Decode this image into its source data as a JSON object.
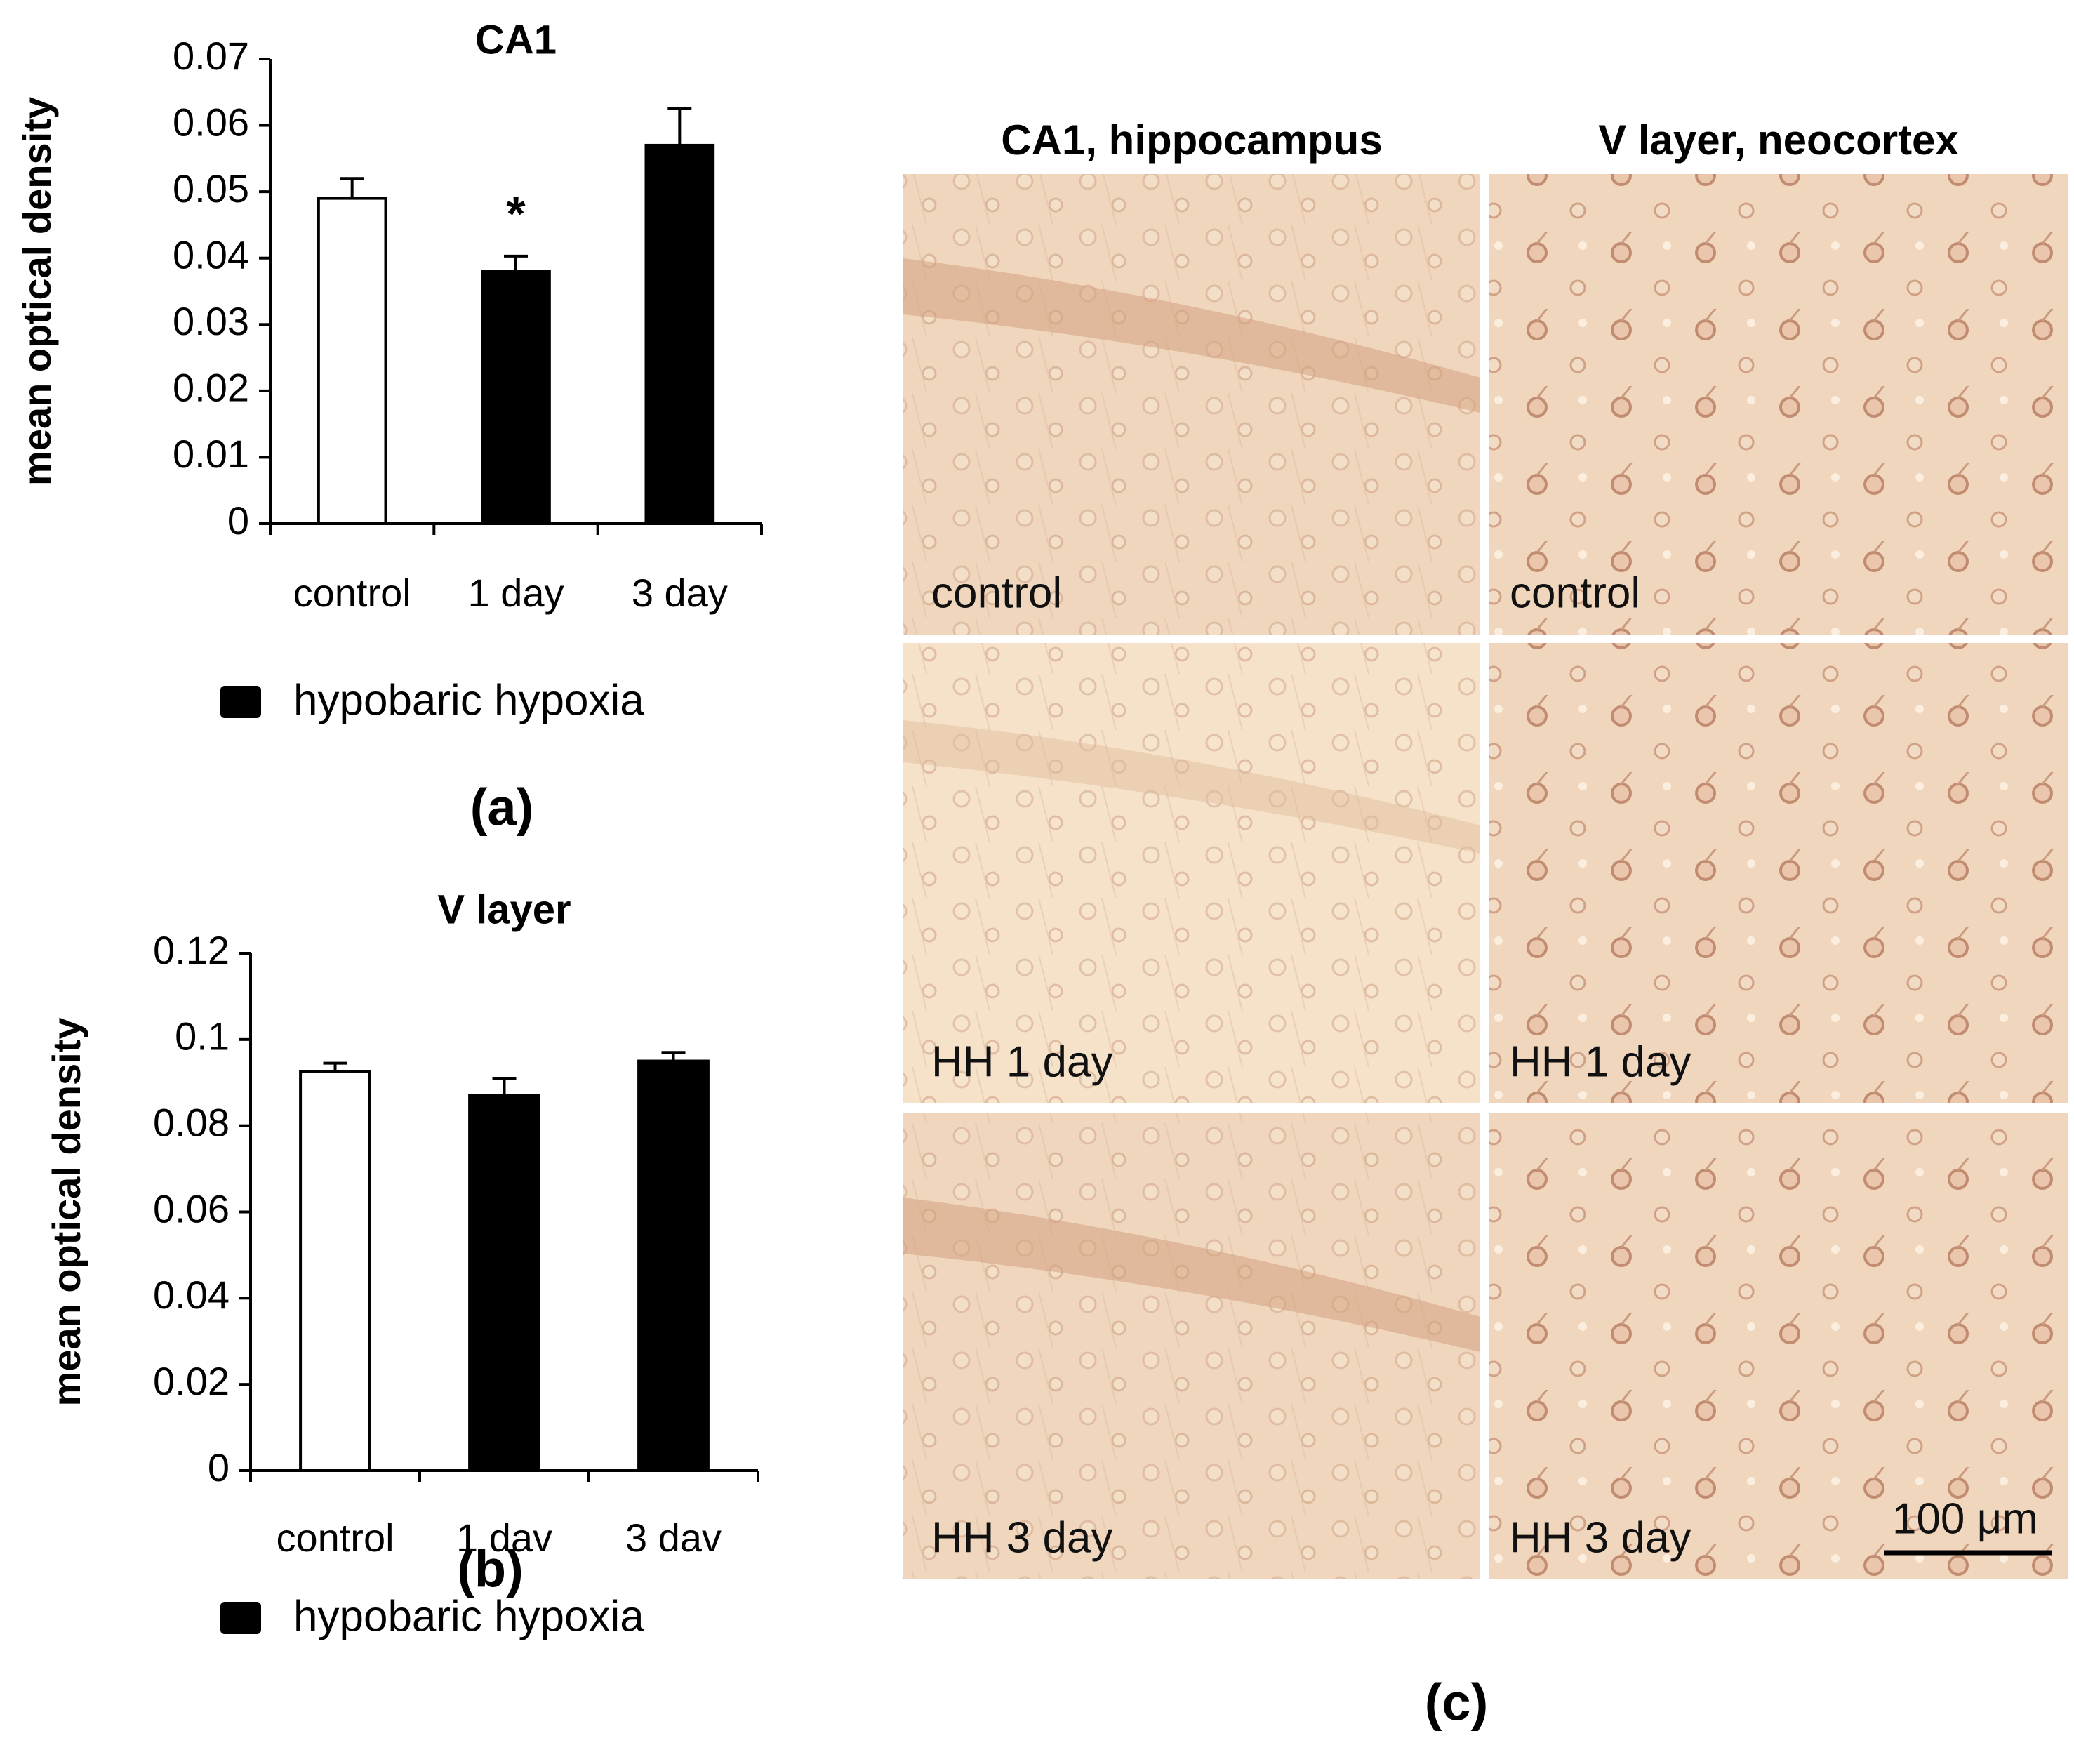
{
  "chart_data": [
    {
      "type": "bar",
      "title": "CA1",
      "y_label": "mean optical density",
      "panel_label": "(a)",
      "categories": [
        "control",
        "1 day",
        "3 day"
      ],
      "values": [
        0.049,
        0.038,
        0.057
      ],
      "errors": [
        0.003,
        0.0023,
        0.0055
      ],
      "colors": [
        "#ffffff",
        "#000000",
        "#000000"
      ],
      "significance": [
        null,
        "*",
        null
      ],
      "legend": {
        "name": "hypobaric hypoxia",
        "color": "#000000"
      },
      "ylim": [
        0,
        0.07
      ],
      "yticks": [
        0,
        0.01,
        0.02,
        0.03,
        0.04,
        0.05,
        0.06,
        0.07
      ]
    },
    {
      "type": "bar",
      "title": "V layer",
      "y_label": "mean optical density",
      "panel_label": "(b)",
      "categories": [
        "control",
        "1 dav",
        "3 dav"
      ],
      "values": [
        0.0925,
        0.087,
        0.095
      ],
      "errors": [
        0.002,
        0.004,
        0.002
      ],
      "colors": [
        "#ffffff",
        "#000000",
        "#000000"
      ],
      "legend": {
        "name": "hypobaric hypoxia",
        "color": "#000000"
      },
      "ylim": [
        0,
        0.12
      ],
      "yticks": [
        0,
        0.02,
        0.04,
        0.06,
        0.08,
        0.1,
        0.12
      ]
    }
  ],
  "micrographs": {
    "columns": [
      "CA1, hippocampus",
      "V layer, neocortex"
    ],
    "rows": [
      [
        "control",
        "control"
      ],
      [
        "HH 1 day",
        "HH 1 day"
      ],
      [
        "HH 3 day",
        "HH 3 day"
      ]
    ],
    "scale_bar": "100 μm",
    "panel_label": "(c)"
  }
}
